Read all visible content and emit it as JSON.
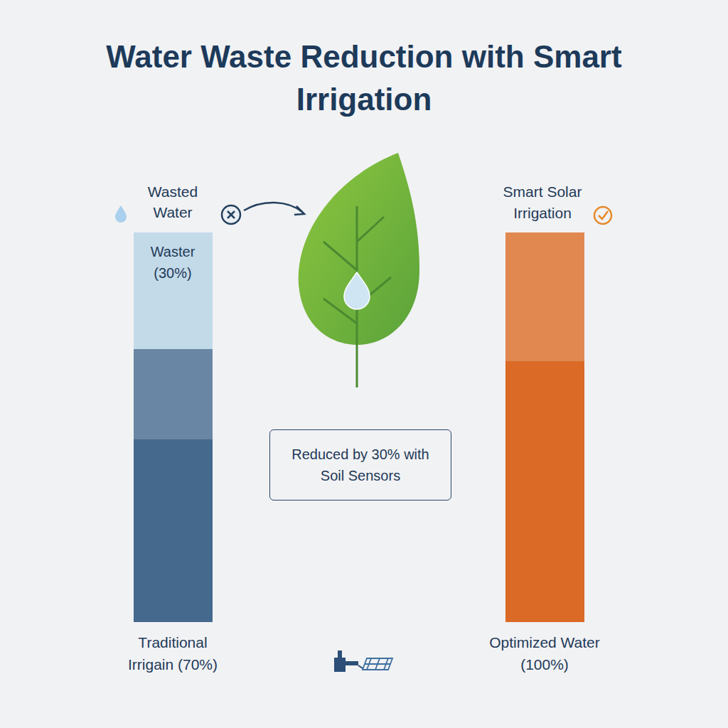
{
  "chart_data": {
    "type": "bar",
    "stacked": true,
    "title": "Water Waste Reduction with Smart Irrigation",
    "categories": [
      "Traditional Irrigain (70%)",
      "Optimized Water (100%)"
    ],
    "series": [
      {
        "values": [
          70,
          100
        ],
        "colors": [
          "#44698d",
          "#da6a26"
        ]
      },
      {
        "name": "Wasted Water",
        "values": [
          30,
          null
        ],
        "color": "#c3dae9",
        "value_labels": [
          "Waster (30%)",
          null
        ]
      }
    ],
    "annotations": [
      "Smart Solar Irrigation",
      "Reduced by 30% with Soil Sensors"
    ],
    "ylim": [
      0,
      100
    ],
    "grid": false,
    "tick_labels": false,
    "data_labels": true
  }
}
